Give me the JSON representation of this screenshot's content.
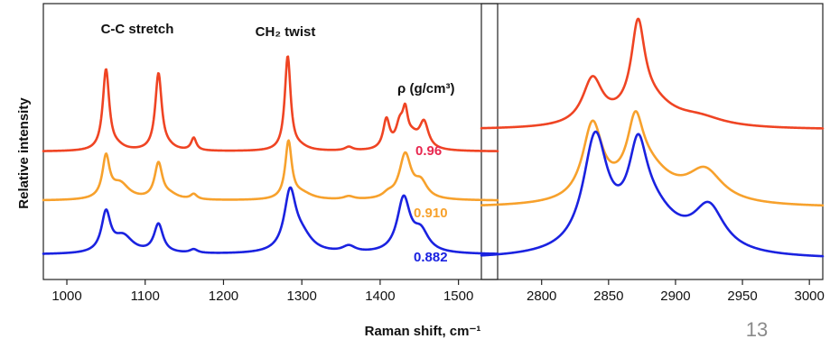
{
  "chart_data": [
    {
      "type": "line",
      "region": "low-wavenumber",
      "xlabel": "Raman shift, cm⁻¹",
      "ylabel": "Relative intensity",
      "xlim": [
        970,
        1550
      ],
      "xticks": [
        1000,
        1100,
        1200,
        1300,
        1400,
        1500
      ],
      "yticks": false,
      "grid": false,
      "annotations": [
        {
          "text": "C-C stretch",
          "x": 1085
        },
        {
          "text": "CH₂ twist",
          "x": 1305
        }
      ],
      "series": [
        {
          "name": "0.96",
          "color": "#ef4423",
          "baseline": 2.05,
          "background": 0.0,
          "peaks": [
            {
              "x": 1050,
              "h": 1.55,
              "w": 5
            },
            {
              "x": 1065,
              "h": 0.06,
              "w": 10
            },
            {
              "x": 1117,
              "h": 1.47,
              "w": 5
            },
            {
              "x": 1130,
              "h": 0.05,
              "w": 10
            },
            {
              "x": 1162,
              "h": 0.24,
              "w": 4
            },
            {
              "x": 1282,
              "h": 1.8,
              "w": 4.5
            },
            {
              "x": 1298,
              "h": 0.06,
              "w": 12
            },
            {
              "x": 1360,
              "h": 0.07,
              "w": 6
            },
            {
              "x": 1408,
              "h": 0.56,
              "w": 5
            },
            {
              "x": 1425,
              "h": 0.42,
              "w": 6
            },
            {
              "x": 1432,
              "h": 0.55,
              "w": 4
            },
            {
              "x": 1441,
              "h": 0.22,
              "w": 10
            },
            {
              "x": 1456,
              "h": 0.5,
              "w": 7
            }
          ]
        },
        {
          "name": "0.910",
          "color": "#f7a12c",
          "baseline": 1.05,
          "background": 0.06,
          "peaks": [
            {
              "x": 1050,
              "h": 0.78,
              "w": 5.5
            },
            {
              "x": 1068,
              "h": 0.3,
              "w": 14
            },
            {
              "x": 1117,
              "h": 0.68,
              "w": 6
            },
            {
              "x": 1132,
              "h": 0.08,
              "w": 12
            },
            {
              "x": 1162,
              "h": 0.1,
              "w": 5
            },
            {
              "x": 1283,
              "h": 1.09,
              "w": 5
            },
            {
              "x": 1300,
              "h": 0.12,
              "w": 16
            },
            {
              "x": 1360,
              "h": 0.06,
              "w": 8
            },
            {
              "x": 1410,
              "h": 0.08,
              "w": 8
            },
            {
              "x": 1432,
              "h": 0.85,
              "w": 9
            },
            {
              "x": 1452,
              "h": 0.3,
              "w": 10
            }
          ]
        },
        {
          "name": "0.882",
          "color": "#1a22e0",
          "baseline": 0.0,
          "background": 0.08,
          "peaks": [
            {
              "x": 1050,
              "h": 0.75,
              "w": 7
            },
            {
              "x": 1072,
              "h": 0.32,
              "w": 15
            },
            {
              "x": 1117,
              "h": 0.55,
              "w": 7
            },
            {
              "x": 1162,
              "h": 0.07,
              "w": 6
            },
            {
              "x": 1285,
              "h": 1.11,
              "w": 9
            },
            {
              "x": 1300,
              "h": 0.3,
              "w": 16
            },
            {
              "x": 1360,
              "h": 0.12,
              "w": 10
            },
            {
              "x": 1430,
              "h": 1.03,
              "w": 10
            },
            {
              "x": 1452,
              "h": 0.38,
              "w": 12
            }
          ]
        }
      ]
    },
    {
      "type": "line",
      "region": "high-wavenumber",
      "xlabel": "Raman shift, cm⁻¹",
      "xlim": [
        2755,
        3010
      ],
      "xticks": [
        2800,
        2850,
        2900,
        2950,
        3000
      ],
      "yticks": false,
      "grid": false,
      "series": [
        {
          "name": "0.96",
          "color": "#ef4423",
          "baseline": 2.25,
          "peaks": [
            {
              "x": 2838,
              "h": 0.78,
              "w": 9
            },
            {
              "x": 2872,
              "h": 1.45,
              "w": 6
            },
            {
              "x": 2880,
              "h": 0.45,
              "w": 22
            },
            {
              "x": 2918,
              "h": 0.14,
              "w": 22
            }
          ]
        },
        {
          "name": "0.910",
          "color": "#f7a12c",
          "baseline": 0.9,
          "peaks": [
            {
              "x": 2838,
              "h": 1.3,
              "w": 9
            },
            {
              "x": 2870,
              "h": 0.98,
              "w": 7
            },
            {
              "x": 2878,
              "h": 0.62,
              "w": 22
            },
            {
              "x": 2922,
              "h": 0.55,
              "w": 16
            }
          ]
        },
        {
          "name": "0.882",
          "color": "#1a22e0",
          "baseline": 0.0,
          "peaks": [
            {
              "x": 2840,
              "h": 1.9,
              "w": 11
            },
            {
              "x": 2872,
              "h": 1.2,
              "w": 8
            },
            {
              "x": 2880,
              "h": 0.8,
              "w": 25
            },
            {
              "x": 2925,
              "h": 0.75,
              "w": 14
            }
          ]
        }
      ]
    }
  ],
  "legend": {
    "title": "ρ (g/cm³)",
    "entries": [
      {
        "label": "0.96",
        "color": "#e8274f"
      },
      {
        "label": "0.910",
        "color": "#f7a12c"
      },
      {
        "label": "0.882",
        "color": "#1a22e0"
      }
    ]
  },
  "page_number": "13"
}
